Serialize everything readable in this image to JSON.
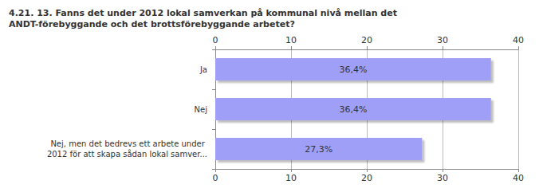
{
  "chart_data": {
    "type": "bar",
    "orientation": "horizontal",
    "title": "4.21. 13. Fanns det under 2012 lokal samverkan på kommunal nivå mellan det ANDT-förebyggande och det brottsförebyggande arbetet?",
    "categories": [
      "Ja",
      "Nej",
      "Nej, men det bedrevs ett arbete under 2012 för att skapa sådan lokal samver..."
    ],
    "values": [
      36.4,
      36.4,
      27.3
    ],
    "value_labels": [
      "36,4%",
      "36,4%",
      "27,3%"
    ],
    "data_labels": true,
    "color": "#9f9ff7",
    "xlim": [
      0,
      40
    ],
    "xticks": [
      0,
      10,
      20,
      30,
      40
    ],
    "grid": true
  }
}
